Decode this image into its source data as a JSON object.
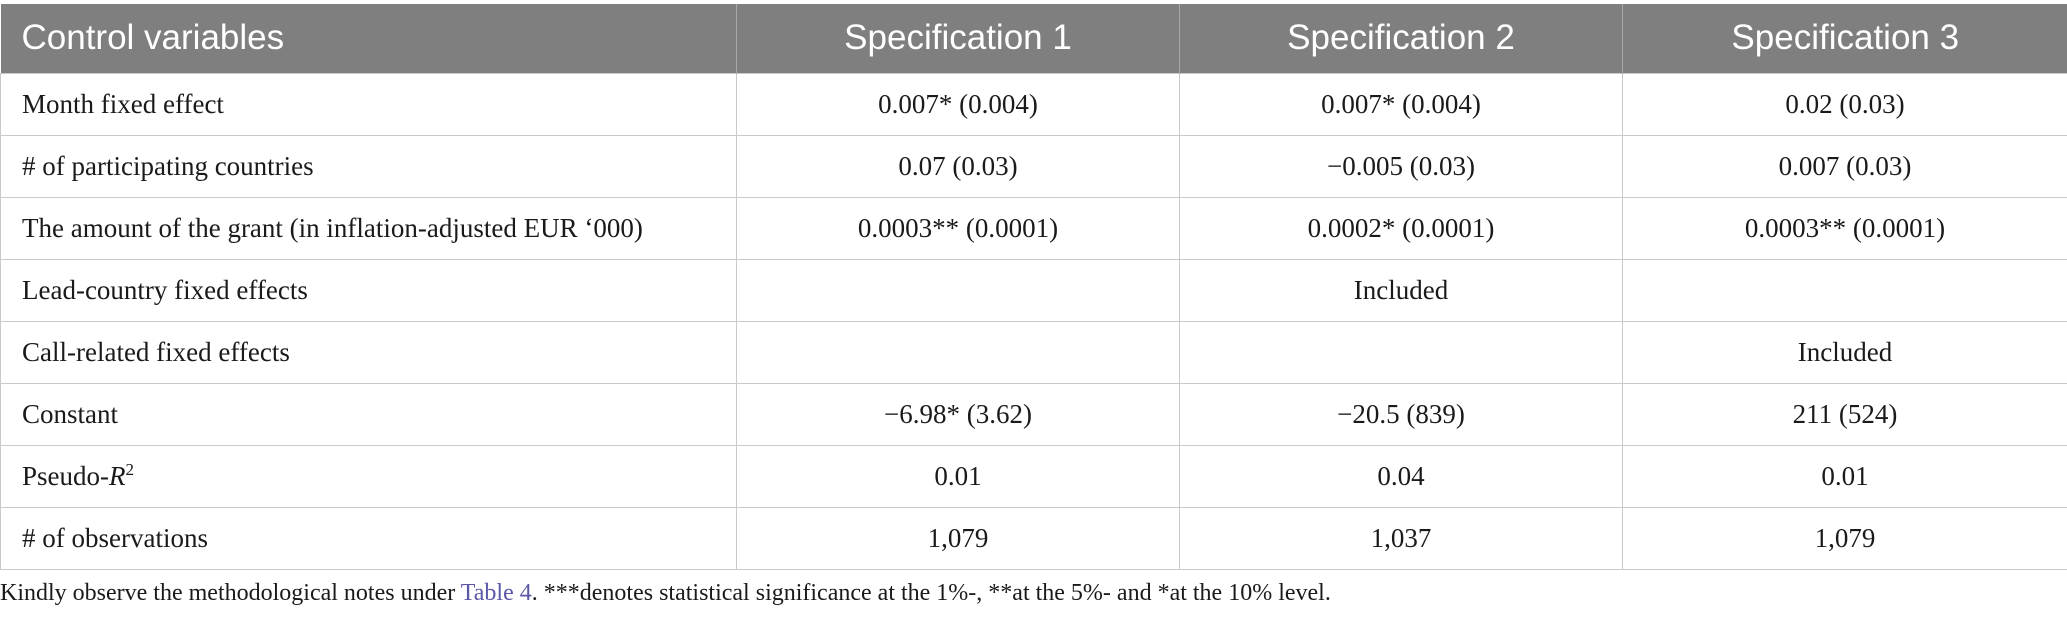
{
  "table": {
    "headers": [
      "Control variables",
      "Specification 1",
      "Specification 2",
      "Specification 3"
    ],
    "rows": [
      [
        "Month fixed effect",
        "0.007* (0.004)",
        "0.007* (0.004)",
        "0.02 (0.03)"
      ],
      [
        "# of participating countries",
        "0.07 (0.03)",
        "−0.005 (0.03)",
        "0.007 (0.03)"
      ],
      [
        "The amount of the grant (in inflation-adjusted EUR ‘000)",
        "0.0003** (0.0001)",
        "0.0002* (0.0001)",
        "0.0003** (0.0001)"
      ],
      [
        "Lead-country fixed effects",
        "",
        "Included",
        ""
      ],
      [
        "Call-related fixed effects",
        "",
        "",
        "Included"
      ],
      [
        "Constant",
        "−6.98* (3.62)",
        "−20.5 (839)",
        "211 (524)"
      ],
      [
        "Pseudo-",
        "0.01",
        "0.04",
        "0.01"
      ],
      [
        "# of observations",
        "1,079",
        "1,037",
        "1,079"
      ]
    ],
    "pseudo_r_italic": "R",
    "pseudo_r_sup": "2"
  },
  "note": {
    "prefix": "Kindly observe the methodological notes under ",
    "link": "Table 4",
    "suffix": ". ***denotes statistical significance at the 1%-, **at the 5%- and *at the 10% level."
  }
}
